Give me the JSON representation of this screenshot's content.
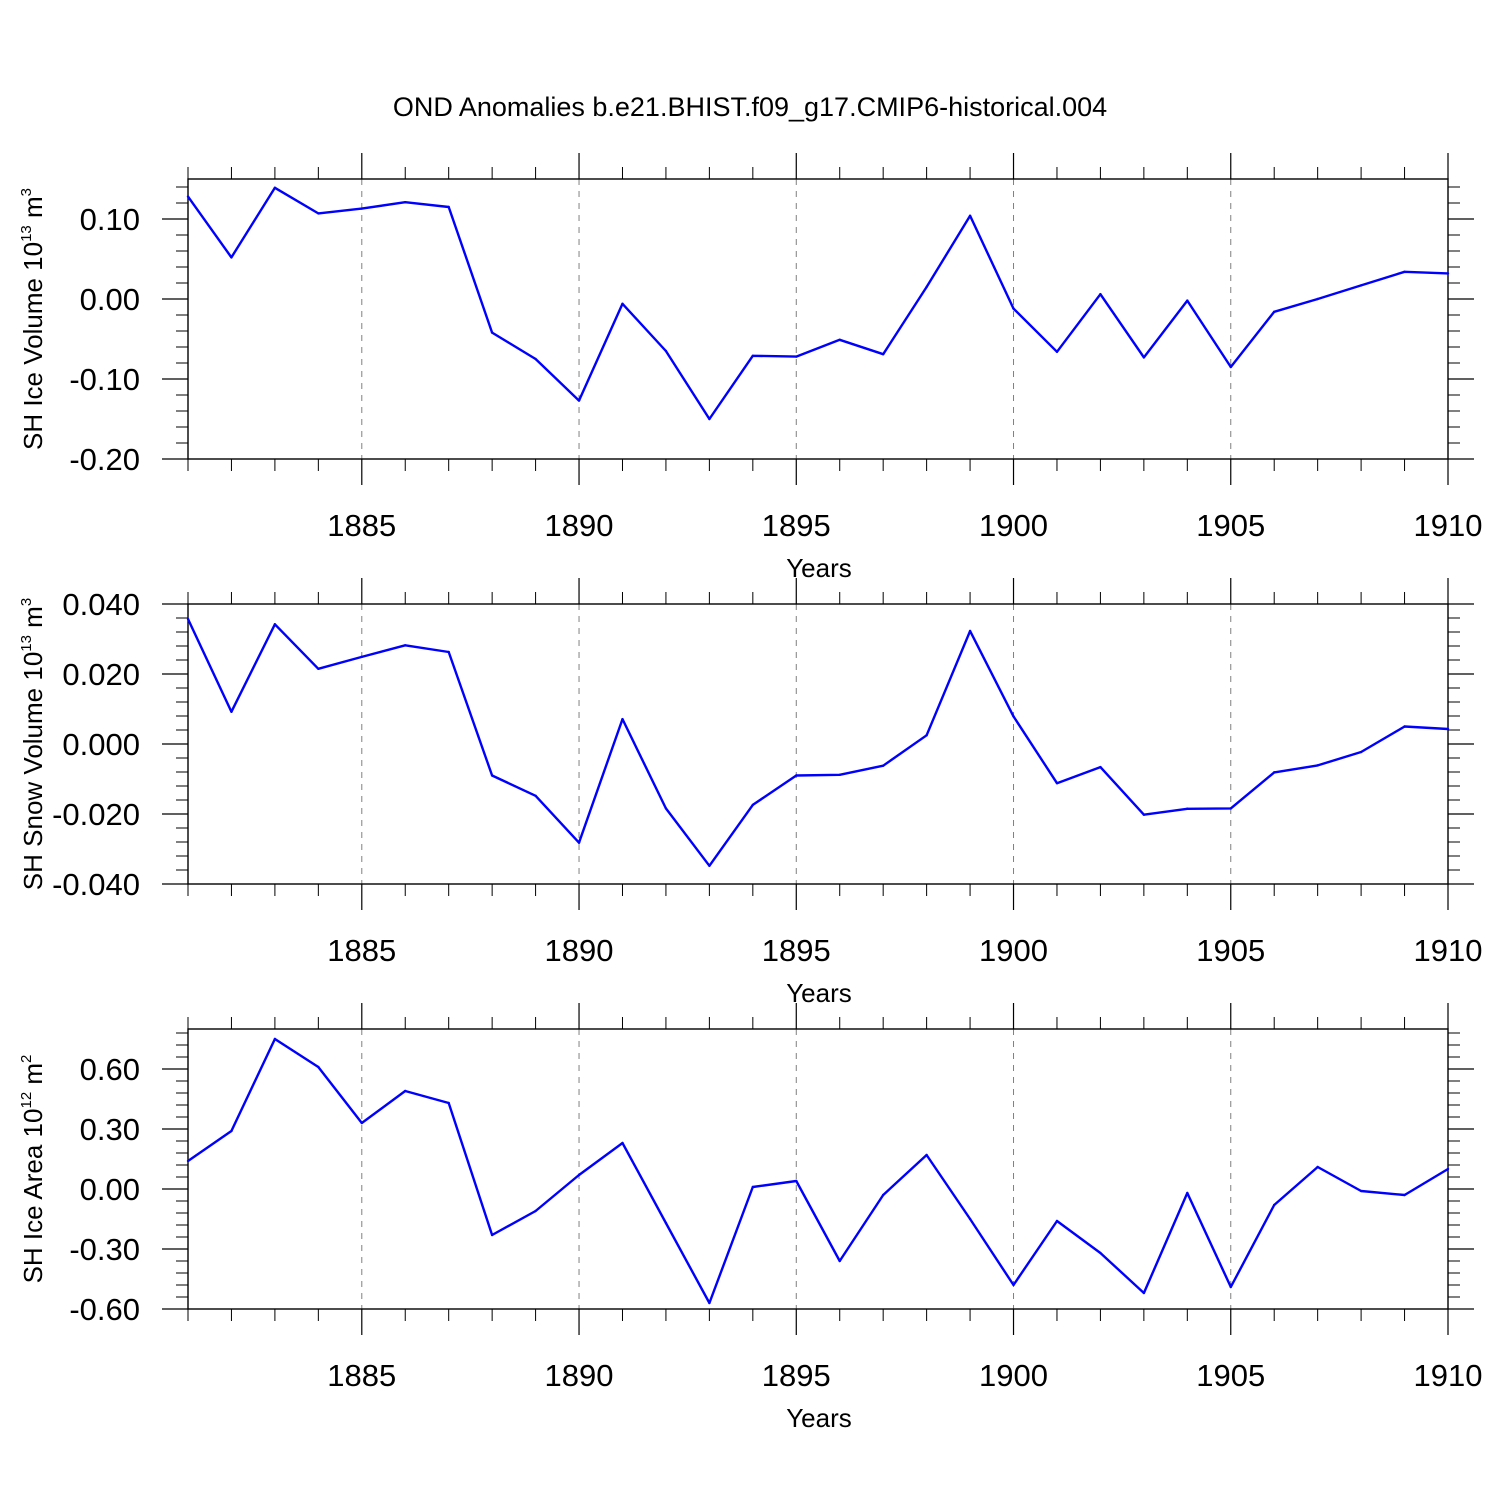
{
  "title": "OND Anomalies b.e21.BHIST.f09_g17.CMIP6-historical.004",
  "colors": {
    "line": "#0000ff",
    "axis": "#000000",
    "grid": "#808080"
  },
  "chart_data": [
    {
      "type": "line",
      "xlabel": "Years",
      "ylabel_main": "SH Ice Volume 10",
      "ylabel_sup1": "13",
      "ylabel_mid": " m",
      "ylabel_sup2": "3",
      "xlim": [
        1881,
        1910
      ],
      "ylim": [
        -0.2,
        0.15
      ],
      "xticks": [
        1885,
        1890,
        1895,
        1900,
        1905,
        1910
      ],
      "xtick_labels": [
        "1885",
        "1890",
        "1895",
        "1900",
        "1905",
        "1910"
      ],
      "yticks": [
        -0.2,
        -0.1,
        0.0,
        0.1
      ],
      "ytick_labels": [
        "-0.20",
        "-0.10",
        "0.00",
        "0.10"
      ],
      "x": [
        1881,
        1882,
        1883,
        1884,
        1885,
        1886,
        1887,
        1888,
        1889,
        1890,
        1891,
        1892,
        1893,
        1894,
        1895,
        1896,
        1897,
        1898,
        1899,
        1900,
        1901,
        1902,
        1903,
        1904,
        1905,
        1906,
        1907,
        1908,
        1909,
        1910
      ],
      "values": [
        0.128,
        0.052,
        0.139,
        0.107,
        0.113,
        0.121,
        0.115,
        -0.042,
        -0.075,
        -0.127,
        -0.006,
        -0.065,
        -0.15,
        -0.071,
        -0.072,
        -0.051,
        -0.069,
        0.015,
        0.104,
        -0.012,
        -0.066,
        0.006,
        -0.073,
        -0.002,
        -0.085,
        -0.016,
        0.0,
        0.017,
        0.034,
        0.032
      ]
    },
    {
      "type": "line",
      "xlabel": "Years",
      "ylabel_main": "SH Snow Volume 10",
      "ylabel_sup1": "13",
      "ylabel_mid": " m",
      "ylabel_sup2": "3",
      "xlim": [
        1881,
        1910
      ],
      "ylim": [
        -0.04,
        0.04
      ],
      "xticks": [
        1885,
        1890,
        1895,
        1900,
        1905,
        1910
      ],
      "xtick_labels": [
        "1885",
        "1890",
        "1895",
        "1900",
        "1905",
        "1910"
      ],
      "yticks": [
        -0.04,
        -0.02,
        0.0,
        0.02,
        0.04
      ],
      "ytick_labels": [
        "-0.040",
        "-0.020",
        "0.000",
        "0.020",
        "0.040"
      ],
      "x": [
        1881,
        1882,
        1883,
        1884,
        1885,
        1886,
        1887,
        1888,
        1889,
        1890,
        1891,
        1892,
        1893,
        1894,
        1895,
        1896,
        1897,
        1898,
        1899,
        1900,
        1901,
        1902,
        1903,
        1904,
        1905,
        1906,
        1907,
        1908,
        1909,
        1910
      ],
      "values": [
        0.0357,
        0.0092,
        0.0342,
        0.0215,
        0.0249,
        0.0282,
        0.0263,
        -0.009,
        -0.0148,
        -0.0282,
        0.0071,
        -0.0184,
        -0.0348,
        -0.0174,
        -0.009,
        -0.0088,
        -0.0062,
        0.0025,
        0.0323,
        0.0079,
        -0.0112,
        -0.0066,
        -0.0202,
        -0.0185,
        -0.0184,
        -0.0081,
        -0.0061,
        -0.0023,
        0.005,
        0.0043
      ]
    },
    {
      "type": "line",
      "xlabel": "Years",
      "ylabel_main": "SH Ice Area 10",
      "ylabel_sup1": "12",
      "ylabel_mid": " m",
      "ylabel_sup2": "2",
      "xlim": [
        1881,
        1910
      ],
      "ylim": [
        -0.6,
        0.8
      ],
      "xticks": [
        1885,
        1890,
        1895,
        1900,
        1905,
        1910
      ],
      "xtick_labels": [
        "1885",
        "1890",
        "1895",
        "1900",
        "1905",
        "1910"
      ],
      "yticks": [
        -0.6,
        -0.3,
        0.0,
        0.3,
        0.6
      ],
      "ytick_labels": [
        "-0.60",
        "-0.30",
        "0.00",
        "0.30",
        "0.60"
      ],
      "x": [
        1881,
        1882,
        1883,
        1884,
        1885,
        1886,
        1887,
        1888,
        1889,
        1890,
        1891,
        1892,
        1893,
        1894,
        1895,
        1896,
        1897,
        1898,
        1899,
        1900,
        1901,
        1902,
        1903,
        1904,
        1905,
        1906,
        1907,
        1908,
        1909,
        1910
      ],
      "values": [
        0.14,
        0.29,
        0.75,
        0.61,
        0.33,
        0.49,
        0.43,
        -0.23,
        -0.11,
        0.07,
        0.23,
        -0.17,
        -0.57,
        0.01,
        0.04,
        -0.36,
        -0.03,
        0.17,
        -0.15,
        -0.48,
        -0.16,
        -0.32,
        -0.52,
        -0.02,
        -0.49,
        -0.08,
        0.11,
        -0.01,
        -0.03,
        0.1
      ]
    }
  ]
}
